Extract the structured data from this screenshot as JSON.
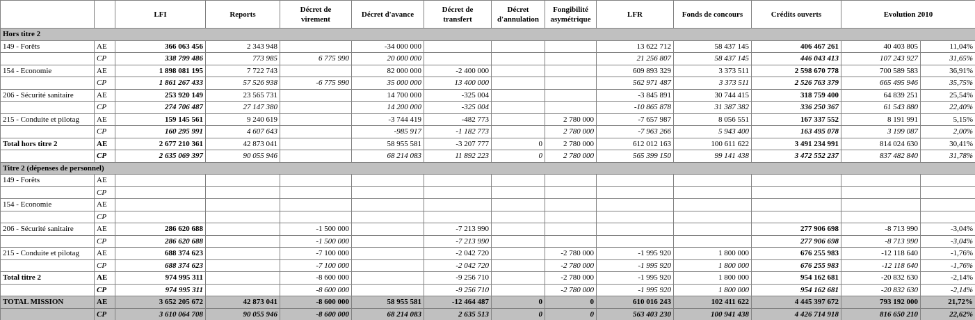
{
  "table": {
    "columns": [
      "LFI",
      "Reports",
      "Décret de virement",
      "Décret d'avance",
      "Décret de transfert",
      "Décret d'annulation",
      "Fongibilité asymétrique",
      "LFR",
      "Fonds de concours",
      "Crédits ouverts",
      "Evolution 2010"
    ],
    "rows": [
      {
        "section": "Hors titre 2"
      },
      {
        "label": "149 - Forêts",
        "type": "AE",
        "cells": [
          "366 063 456",
          "2 343 948",
          null,
          "-34 000 000",
          null,
          null,
          null,
          "13 622 712",
          "58 437 145",
          "406 467 261",
          "40 403 805",
          "11,04%"
        ]
      },
      {
        "label": null,
        "type": "CP",
        "cells": [
          "338 799 486",
          "773 985",
          "6 775 990",
          "20 000 000",
          null,
          null,
          null,
          "21 256 807",
          "58 437 145",
          "446 043 413",
          "107 243 927",
          "31,65%"
        ]
      },
      {
        "label": "154 - Economie",
        "type": "AE",
        "cells": [
          "1 898 081 195",
          "7 722 743",
          null,
          "82 000 000",
          "-2 400 000",
          null,
          null,
          "609 893 329",
          "3 373 511",
          "2 598 670 778",
          "700 589 583",
          "36,91%"
        ]
      },
      {
        "label": null,
        "type": "CP",
        "cells": [
          "1 861 267 433",
          "57 526 938",
          "-6 775 990",
          "35 000 000",
          "13 400 000",
          null,
          null,
          "562 971 487",
          "3 373 511",
          "2 526 763 379",
          "665 495 946",
          "35,75%"
        ]
      },
      {
        "label": "206 - Sécurité sanitaire",
        "type": "AE",
        "cells": [
          "253 920 149",
          "23 565 731",
          null,
          "14 700 000",
          "-325 004",
          null,
          null,
          "-3 845 891",
          "30 744 415",
          "318 759 400",
          "64 839 251",
          "25,54%"
        ]
      },
      {
        "label": null,
        "type": "CP",
        "cells": [
          "274 706 487",
          "27 147 380",
          null,
          "14 200 000",
          "-325 004",
          null,
          null,
          "-10 865 878",
          "31 387 382",
          "336 250 367",
          "61 543 880",
          "22,40%"
        ]
      },
      {
        "label": "215 - Conduite et pilotag",
        "type": "AE",
        "cells": [
          "159 145 561",
          "9 240 619",
          null,
          "-3 744 419",
          "-482 773",
          null,
          "2 780 000",
          "-7 657 987",
          "8 056 551",
          "167 337 552",
          "8 191 991",
          "5,15%"
        ]
      },
      {
        "label": null,
        "type": "CP",
        "cells": [
          "160 295 991",
          "4 607 643",
          null,
          "-985 917",
          "-1 182 773",
          null,
          "2 780 000",
          "-7 963 266",
          "5 943 400",
          "163 495 078",
          "3 199 087",
          "2,00%"
        ]
      },
      {
        "label": "Total hors titre 2",
        "type": "AE",
        "cells": [
          "2 677 210 361",
          "42 873 041",
          null,
          "58 955 581",
          "-3 207 777",
          "0",
          "2 780 000",
          "612 012 163",
          "100 611 622",
          "3 491 234 991",
          "814 024 630",
          "30,41%"
        ]
      },
      {
        "label": null,
        "type": "CP",
        "cells": [
          "2 635 069 397",
          "90 055 946",
          null,
          "68 214 083",
          "11 892 223",
          "0",
          "2 780 000",
          "565 399 150",
          "99 141 438",
          "3 472 552 237",
          "837 482 840",
          "31,78%"
        ]
      },
      {
        "section": "Titre 2 (dépenses de personnel)"
      },
      {
        "label": "149 - Forêts",
        "type": "AE",
        "cells": [
          null,
          null,
          null,
          null,
          null,
          null,
          null,
          null,
          null,
          null,
          null,
          null
        ]
      },
      {
        "label": null,
        "type": "CP",
        "cells": [
          null,
          null,
          null,
          null,
          null,
          null,
          null,
          null,
          null,
          null,
          null,
          null
        ]
      },
      {
        "label": "154 -  Economie",
        "type": "AE",
        "cells": [
          null,
          null,
          null,
          null,
          null,
          null,
          null,
          null,
          null,
          null,
          null,
          null
        ]
      },
      {
        "label": null,
        "type": "CP",
        "cells": [
          null,
          null,
          null,
          null,
          null,
          null,
          null,
          null,
          null,
          null,
          null,
          null
        ]
      },
      {
        "label": "206 - Sécurité sanitaire",
        "type": "AE",
        "cells": [
          "286 620 688",
          null,
          "-1 500 000",
          null,
          "-7 213 990",
          null,
          null,
          null,
          null,
          "277 906 698",
          "-8 713 990",
          "-3,04%"
        ]
      },
      {
        "label": null,
        "type": "CP",
        "cells": [
          "286 620 688",
          null,
          "-1 500 000",
          null,
          "-7 213 990",
          null,
          null,
          null,
          null,
          "277 906 698",
          "-8 713 990",
          "-3,04%"
        ]
      },
      {
        "label": "215 - Conduite et pilotag",
        "type": "AE",
        "cells": [
          "688 374 623",
          null,
          "-7 100 000",
          null,
          "-2 042 720",
          null,
          "-2 780 000",
          "-1 995 920",
          "1 800 000",
          "676 255 983",
          "-12 118 640",
          "-1,76%"
        ]
      },
      {
        "label": null,
        "type": "CP",
        "cells": [
          "688 374 623",
          null,
          "-7 100 000",
          null,
          "-2 042 720",
          null,
          "-2 780 000",
          "-1 995 920",
          "1 800 000",
          "676 255 983",
          "-12 118 640",
          "-1,76%"
        ]
      },
      {
        "label": "Total titre 2",
        "type": "AE",
        "cells": [
          "974 995 311",
          null,
          "-8 600 000",
          null,
          "-9 256 710",
          null,
          "-2 780 000",
          "-1 995 920",
          "1 800 000",
          "954 162 681",
          "-20 832 630",
          "-2,14%"
        ]
      },
      {
        "label": null,
        "type": "CP",
        "cells": [
          "974 995 311",
          null,
          "-8 600 000",
          null,
          "-9 256 710",
          null,
          "-2 780 000",
          "-1 995 920",
          "1 800 000",
          "954 162 681",
          "-20 832 630",
          "-2,14%"
        ]
      },
      {
        "label": "TOTAL MISSION",
        "type": "AE",
        "cells": [
          "3 652 205 672",
          "42 873 041",
          "-8 600 000",
          "58 955 581",
          "-12 464 487",
          "0",
          "0",
          "610 016 243",
          "102 411 622",
          "4 445 397 672",
          "793 192 000",
          "21,72%"
        ]
      },
      {
        "label": null,
        "type": "CP",
        "cells": [
          "3 610 064 708",
          "90 055 946",
          "-8 600 000",
          "68 214 083",
          "2 635 513",
          "0",
          "0",
          "563 403 230",
          "100 941 438",
          "4 426 714 918",
          "816 650 210",
          "22,62%"
        ]
      }
    ]
  }
}
